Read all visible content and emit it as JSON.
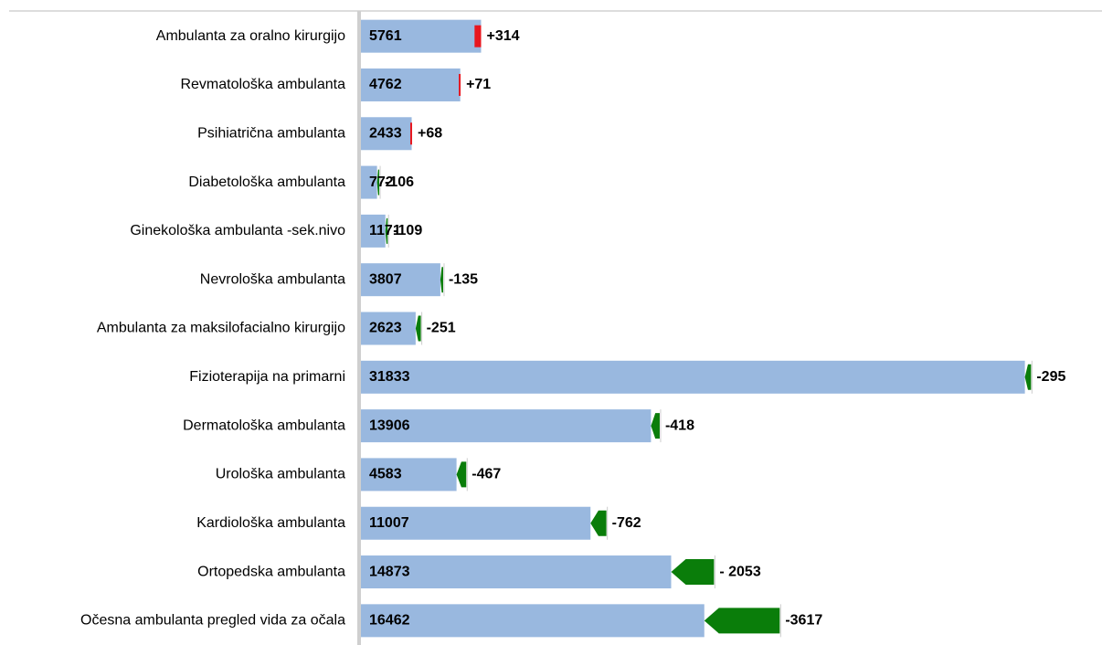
{
  "chart_data": {
    "type": "bar-change",
    "categories": [
      "Ambulanta za oralno kirurgijo",
      "Revmatološka ambulanta",
      "Psihiatrična ambulanta",
      "Diabetološka ambulanta",
      "Ginekološka ambulanta -sek.nivo",
      "Nevrološka ambulanta",
      "Ambulanta za maksilofacialno kirurgijo",
      "Fizioterapija na primarni",
      "Dermatološka ambulanta",
      "Urološka ambulanta",
      "Kardiološka ambulanta",
      "Ortopedska ambulanta",
      "Očesna ambulanta  pregled vida za očala"
    ],
    "values": [
      5761,
      4762,
      2433,
      772,
      1171,
      3807,
      2623,
      31833,
      13906,
      4583,
      11007,
      14873,
      16462
    ],
    "color": "#99b8df",
    "changes": {
      "values": [
        314,
        71,
        68,
        -106,
        -109,
        -135,
        -251,
        -295,
        -418,
        -467,
        -762,
        -2053,
        -3617
      ],
      "value_labels": [
        "+314",
        "+71",
        "+68",
        "-106",
        "-109",
        "-135",
        "-251",
        "-295",
        "-418",
        "-467",
        "-762",
        "- 2053",
        "-3617"
      ],
      "up_color": "#e8161e",
      "down_color": "#0a7d0a"
    },
    "xlim": [
      0,
      31850
    ]
  }
}
